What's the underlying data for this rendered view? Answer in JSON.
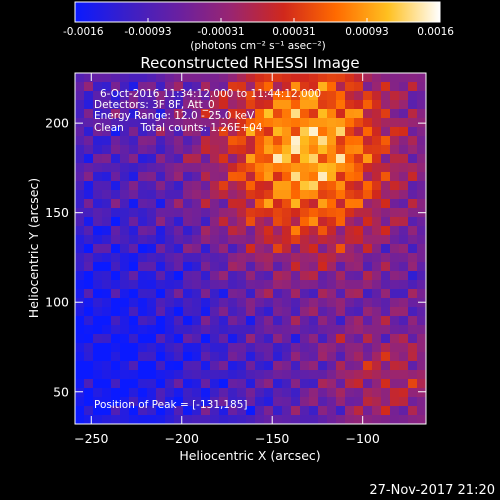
{
  "colorbar": {
    "tick_labels": [
      "-0.0016",
      "-0.00093",
      "-0.00031",
      "0.00031",
      "0.00093",
      "0.0016"
    ],
    "unit_label": "(photons cm⁻² s⁻¹ asec⁻²)",
    "colors": [
      "#0a1aff",
      "#3a1fc8",
      "#6a20a0",
      "#9a2570",
      "#d0281c",
      "#ff6a00",
      "#ffc020",
      "#ffffff"
    ]
  },
  "chart_data": {
    "type": "heatmap",
    "title": "Reconstructed RHESSI Image",
    "xlabel": "Heliocentric X (arcsec)",
    "ylabel": "Heliocentric Y (arcsec)",
    "xlim": [
      -259,
      -65
    ],
    "ylim": [
      32,
      228
    ],
    "x_ticks": [
      -250,
      -200,
      -150,
      -100
    ],
    "y_ticks": [
      50,
      100,
      150,
      200
    ],
    "peak": [
      -131,
      185
    ],
    "annotations": [
      "6-Oct-2016 11:34:12.000 to 11:44:12.000",
      "Detectors: 3F 8F, Att_0",
      "Energy Range: 12.0 - 25.0 keV",
      "Clean     Total counts: 1.26E+04"
    ],
    "peak_label": "Position of Peak = [-131,185]"
  },
  "footer": {
    "timestamp": "27-Nov-2017 21:20"
  }
}
